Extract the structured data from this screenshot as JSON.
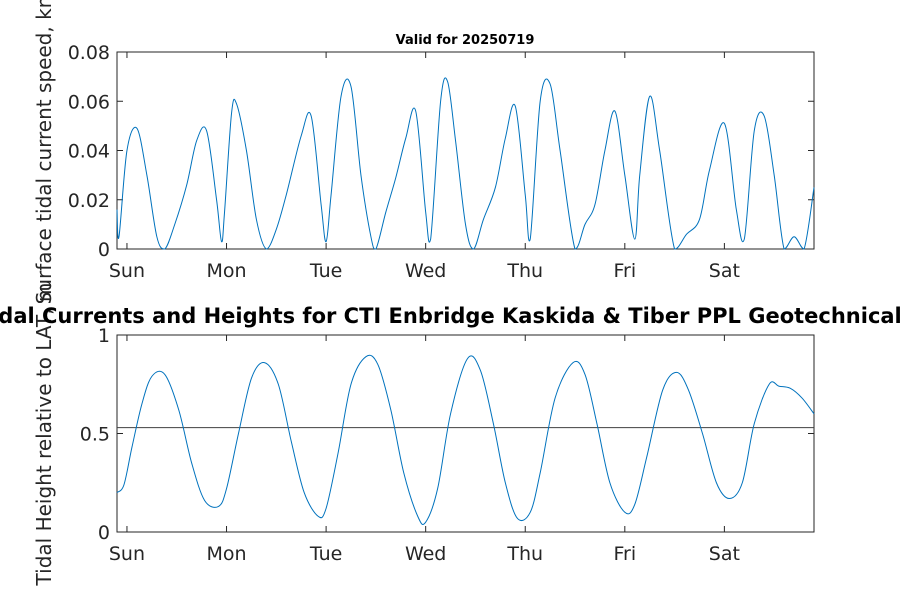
{
  "chart_data": [
    {
      "type": "line",
      "title": "Valid for 20250719",
      "ylabel": "Surface tidal current speed, kn",
      "xlabel": "",
      "ylim": [
        0,
        0.08
      ],
      "yticks": [
        "0",
        "0.02",
        "0.04",
        "0.06",
        "0.08"
      ],
      "xlim_days": [
        -0.1,
        6.9
      ],
      "xticks": [
        "Sun",
        "Mon",
        "Tue",
        "Wed",
        "Thu",
        "Fri",
        "Sat"
      ],
      "grid": false,
      "line_color": "#0072BD",
      "series": [
        {
          "x": [
            -0.1,
            -0.08,
            0.0,
            0.1,
            0.2,
            0.3,
            0.38,
            0.48,
            0.6,
            0.7,
            0.8,
            0.9,
            0.95,
            0.98,
            1.05,
            1.1,
            1.2,
            1.3,
            1.4,
            1.5,
            1.6,
            1.75,
            1.85,
            1.95,
            2.0,
            2.05,
            2.15,
            2.25,
            2.35,
            2.45,
            2.5,
            2.6,
            2.7,
            2.8,
            2.9,
            3.0,
            3.05,
            3.15,
            3.22,
            3.3,
            3.4,
            3.48,
            3.58,
            3.7,
            3.8,
            3.9,
            4.0,
            4.05,
            4.15,
            4.25,
            4.35,
            4.5,
            4.6,
            4.7,
            4.8,
            4.9,
            5.0,
            5.1,
            5.15,
            5.25,
            5.35,
            5.5,
            5.62,
            5.75,
            5.85,
            6.0,
            6.12,
            6.2,
            6.3,
            6.4,
            6.5,
            6.6,
            6.7,
            6.8,
            6.9
          ],
          "y": [
            0.016,
            0.005,
            0.04,
            0.049,
            0.03,
            0.005,
            0.0,
            0.01,
            0.026,
            0.044,
            0.048,
            0.02,
            0.003,
            0.015,
            0.055,
            0.059,
            0.04,
            0.012,
            0.0,
            0.008,
            0.022,
            0.046,
            0.054,
            0.018,
            0.003,
            0.022,
            0.062,
            0.066,
            0.03,
            0.005,
            0.0,
            0.015,
            0.029,
            0.045,
            0.056,
            0.015,
            0.004,
            0.06,
            0.068,
            0.044,
            0.01,
            0.0,
            0.012,
            0.025,
            0.045,
            0.058,
            0.022,
            0.004,
            0.06,
            0.067,
            0.04,
            0.0,
            0.01,
            0.018,
            0.04,
            0.056,
            0.03,
            0.004,
            0.03,
            0.062,
            0.04,
            0.0,
            0.006,
            0.012,
            0.032,
            0.051,
            0.016,
            0.004,
            0.048,
            0.054,
            0.03,
            0.0,
            0.005,
            0.0,
            0.025
          ]
        }
      ]
    },
    {
      "type": "line",
      "title": "Tidal Currents and Heights for CTI Enbridge  Kaskida & Tiber PPL Geotechnical and",
      "ylabel": "Tidal Height relative to LAT, m",
      "xlabel": "",
      "ylim": [
        0,
        1
      ],
      "yticks": [
        "0",
        "0.5",
        "1"
      ],
      "xlim_days": [
        -0.1,
        6.9
      ],
      "xticks": [
        "Sun",
        "Mon",
        "Tue",
        "Wed",
        "Thu",
        "Fri",
        "Sat"
      ],
      "grid": false,
      "line_color": "#0072BD",
      "reference_line": 0.53,
      "reference_color": "#404040",
      "series": [
        {
          "x": [
            -0.1,
            -0.03,
            0.05,
            0.15,
            0.25,
            0.38,
            0.52,
            0.65,
            0.78,
            0.92,
            1.0,
            1.12,
            1.25,
            1.38,
            1.52,
            1.65,
            1.78,
            1.92,
            2.0,
            2.12,
            2.25,
            2.4,
            2.52,
            2.65,
            2.78,
            2.92,
            3.0,
            3.12,
            3.25,
            3.42,
            3.55,
            3.68,
            3.8,
            3.92,
            4.05,
            4.15,
            4.3,
            4.48,
            4.6,
            4.72,
            4.85,
            5.0,
            5.1,
            5.22,
            5.38,
            5.52,
            5.64,
            5.78,
            5.92,
            6.05,
            6.18,
            6.3,
            6.45,
            6.55,
            6.66,
            6.78,
            6.9
          ],
          "y": [
            0.2,
            0.24,
            0.43,
            0.65,
            0.79,
            0.8,
            0.62,
            0.35,
            0.16,
            0.13,
            0.22,
            0.5,
            0.78,
            0.86,
            0.75,
            0.46,
            0.2,
            0.08,
            0.12,
            0.4,
            0.75,
            0.89,
            0.85,
            0.62,
            0.3,
            0.08,
            0.05,
            0.22,
            0.6,
            0.88,
            0.82,
            0.55,
            0.25,
            0.07,
            0.1,
            0.3,
            0.68,
            0.86,
            0.8,
            0.55,
            0.25,
            0.1,
            0.14,
            0.38,
            0.72,
            0.81,
            0.72,
            0.5,
            0.25,
            0.17,
            0.25,
            0.55,
            0.75,
            0.74,
            0.73,
            0.68,
            0.6
          ]
        }
      ]
    }
  ]
}
